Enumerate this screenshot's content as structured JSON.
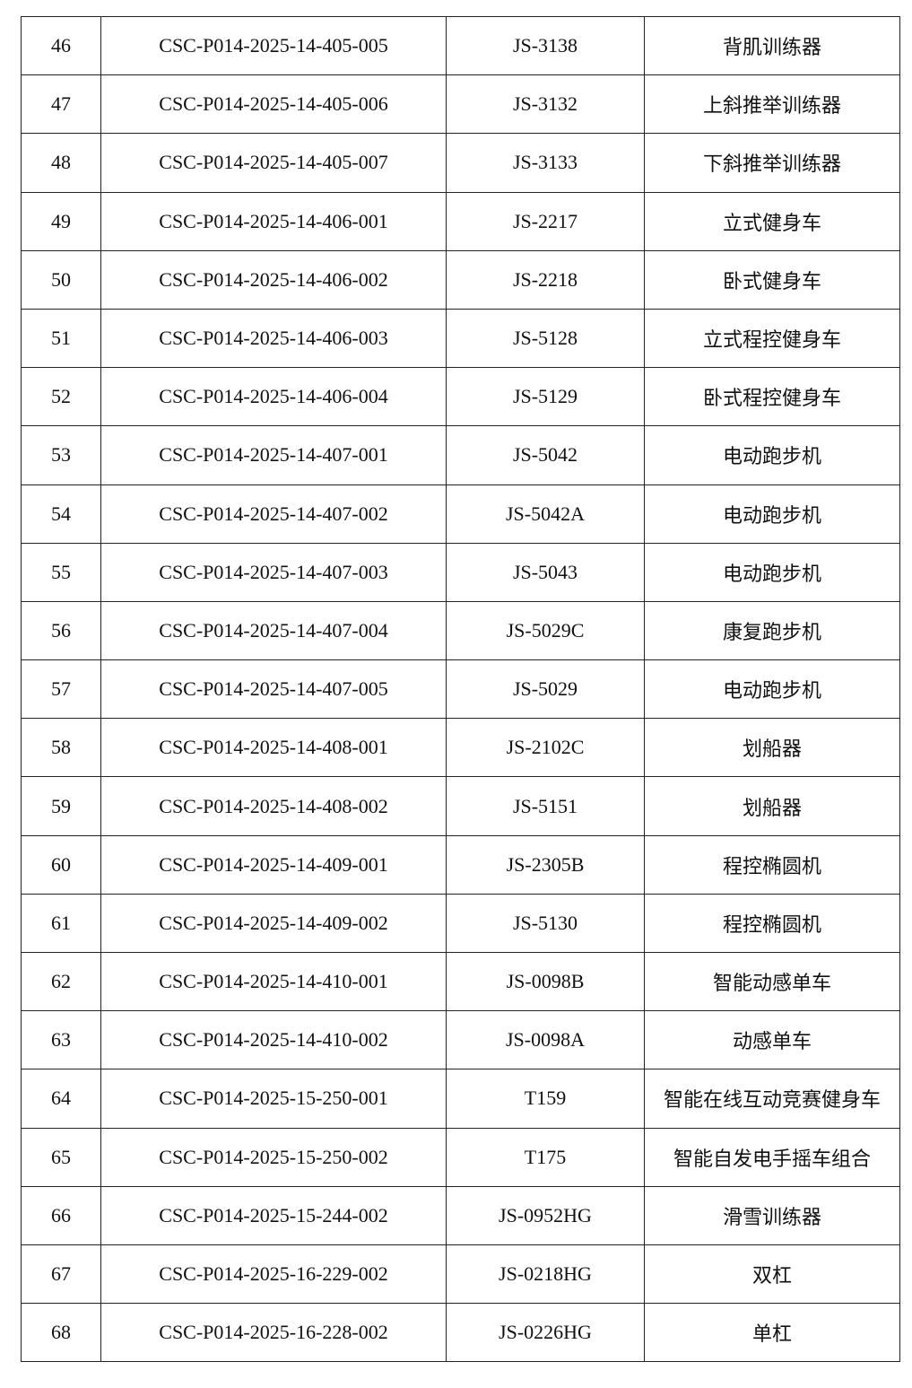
{
  "table": {
    "rows": [
      [
        "46",
        "CSC-P014-2025-14-405-005",
        "JS-3138",
        "背肌训练器"
      ],
      [
        "47",
        "CSC-P014-2025-14-405-006",
        "JS-3132",
        "上斜推举训练器"
      ],
      [
        "48",
        "CSC-P014-2025-14-405-007",
        "JS-3133",
        "下斜推举训练器"
      ],
      [
        "49",
        "CSC-P014-2025-14-406-001",
        "JS-2217",
        "立式健身车"
      ],
      [
        "50",
        "CSC-P014-2025-14-406-002",
        "JS-2218",
        "卧式健身车"
      ],
      [
        "51",
        "CSC-P014-2025-14-406-003",
        "JS-5128",
        "立式程控健身车"
      ],
      [
        "52",
        "CSC-P014-2025-14-406-004",
        "JS-5129",
        "卧式程控健身车"
      ],
      [
        "53",
        "CSC-P014-2025-14-407-001",
        "JS-5042",
        "电动跑步机"
      ],
      [
        "54",
        "CSC-P014-2025-14-407-002",
        "JS-5042A",
        "电动跑步机"
      ],
      [
        "55",
        "CSC-P014-2025-14-407-003",
        "JS-5043",
        "电动跑步机"
      ],
      [
        "56",
        "CSC-P014-2025-14-407-004",
        "JS-5029C",
        "康复跑步机"
      ],
      [
        "57",
        "CSC-P014-2025-14-407-005",
        "JS-5029",
        "电动跑步机"
      ],
      [
        "58",
        "CSC-P014-2025-14-408-001",
        "JS-2102C",
        "划船器"
      ],
      [
        "59",
        "CSC-P014-2025-14-408-002",
        "JS-5151",
        "划船器"
      ],
      [
        "60",
        "CSC-P014-2025-14-409-001",
        "JS-2305B",
        "程控椭圆机"
      ],
      [
        "61",
        "CSC-P014-2025-14-409-002",
        "JS-5130",
        "程控椭圆机"
      ],
      [
        "62",
        "CSC-P014-2025-14-410-001",
        "JS-0098B",
        "智能动感单车"
      ],
      [
        "63",
        "CSC-P014-2025-14-410-002",
        "JS-0098A",
        "动感单车"
      ],
      [
        "64",
        "CSC-P014-2025-15-250-001",
        "T159",
        "智能在线互动竞赛健身车"
      ],
      [
        "65",
        "CSC-P014-2025-15-250-002",
        "T175",
        "智能自发电手摇车组合"
      ],
      [
        "66",
        "CSC-P014-2025-15-244-002",
        "JS-0952HG",
        "滑雪训练器"
      ],
      [
        "67",
        "CSC-P014-2025-16-229-002",
        "JS-0218HG",
        "双杠"
      ],
      [
        "68",
        "CSC-P014-2025-16-228-002",
        "JS-0226HG",
        "单杠"
      ]
    ]
  }
}
